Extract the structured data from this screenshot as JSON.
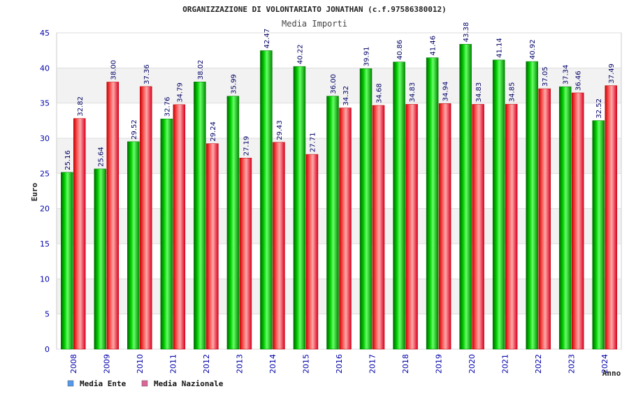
{
  "chart_data": {
    "type": "bar",
    "title": "ORGANIZZAZIONE DI VOLONTARIATO JONATHAN (c.f.97586380012)",
    "subtitle": "Media Importi",
    "xlabel": "Anno",
    "ylabel": "Euro",
    "ylim": [
      0,
      45
    ],
    "yticks": [
      0,
      5,
      10,
      15,
      20,
      25,
      30,
      35,
      40,
      45
    ],
    "categories": [
      "2008",
      "2009",
      "2010",
      "2011",
      "2012",
      "2013",
      "2014",
      "2015",
      "2016",
      "2017",
      "2018",
      "2019",
      "2020",
      "2021",
      "2022",
      "2023",
      "2024"
    ],
    "series": [
      {
        "name": "Media Ente",
        "legend_color": "#5599ee",
        "values": [
          25.16,
          25.64,
          29.52,
          32.76,
          38.02,
          35.99,
          42.47,
          40.22,
          36.0,
          39.91,
          40.86,
          41.46,
          43.38,
          41.14,
          40.92,
          37.34,
          32.52
        ]
      },
      {
        "name": "Media Nazionale",
        "legend_color": "#dd6699",
        "values": [
          32.82,
          38.0,
          37.36,
          34.79,
          29.24,
          27.19,
          29.43,
          27.71,
          34.32,
          34.68,
          34.83,
          34.94,
          34.83,
          34.85,
          37.05,
          36.46,
          37.49
        ]
      }
    ]
  }
}
